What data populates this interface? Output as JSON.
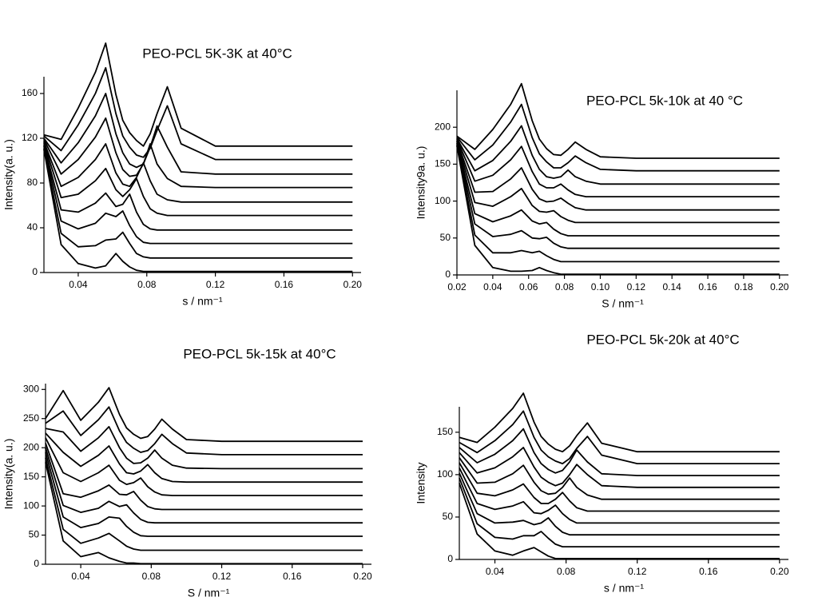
{
  "chart_data": [
    {
      "type": "line",
      "title": "PEO-PCL 5K-3K at 40°C",
      "xlabel": "s / nm⁻¹",
      "ylabel": "Intensity(a. u.)",
      "color": "#000000",
      "x": [
        0.02,
        0.03,
        0.04,
        0.05,
        0.056,
        0.062,
        0.066,
        0.07,
        0.074,
        0.078,
        0.082,
        0.086,
        0.092,
        0.1,
        0.12,
        0.16,
        0.2
      ],
      "series": [
        {
          "values": [
            110,
            25,
            8,
            4,
            6,
            17,
            10,
            5,
            2,
            1,
            1,
            1,
            1,
            1,
            1,
            1,
            1
          ]
        },
        {
          "values": [
            111,
            35,
            23,
            24,
            29,
            30,
            36,
            26,
            17,
            14,
            13,
            13,
            13,
            13,
            13,
            13,
            13
          ]
        },
        {
          "values": [
            113,
            46,
            39,
            44,
            53,
            50,
            55,
            42,
            32,
            27,
            26,
            26,
            26,
            26,
            26,
            26,
            26
          ]
        },
        {
          "values": [
            114,
            56,
            54,
            62,
            71,
            59,
            61,
            70,
            54,
            43,
            39,
            38,
            38,
            38,
            38,
            38,
            38
          ]
        },
        {
          "values": [
            116,
            67,
            70,
            82,
            93,
            74,
            68,
            74,
            84,
            68,
            57,
            53,
            51,
            51,
            51,
            51,
            51
          ]
        },
        {
          "values": [
            117,
            77,
            85,
            101,
            115,
            89,
            79,
            77,
            85,
            98,
            82,
            70,
            65,
            63,
            63,
            63,
            63
          ]
        },
        {
          "values": [
            119,
            88,
            101,
            121,
            138,
            107,
            92,
            86,
            87,
            97,
            115,
            97,
            84,
            77,
            76,
            76,
            76
          ]
        },
        {
          "values": [
            120,
            98,
            116,
            140,
            160,
            124,
            107,
            97,
            94,
            97,
            112,
            131,
            112,
            90,
            88,
            88,
            88
          ]
        },
        {
          "values": [
            122,
            109,
            132,
            160,
            183,
            142,
            122,
            112,
            105,
            103,
            111,
            127,
            149,
            115,
            101,
            101,
            101
          ]
        },
        {
          "values": [
            123,
            119,
            147,
            179,
            205,
            159,
            136,
            125,
            118,
            113,
            124,
            142,
            166,
            129,
            113,
            113,
            113
          ]
        }
      ],
      "xlim": [
        0.02,
        0.205
      ],
      "ylim": [
        0,
        175
      ],
      "xticks": [
        0.04,
        0.08,
        0.12,
        0.16,
        {
          "value": 0.2,
          "label": "0.20"
        }
      ],
      "yticks": [
        0,
        40,
        80,
        120,
        160
      ]
    },
    {
      "type": "line",
      "title": "PEO-PCL 5k-10k at 40 °C",
      "xlabel": "S / nm⁻¹",
      "ylabel": "Intensity9a. u.)",
      "color": "#000000",
      "x": [
        0.02,
        0.03,
        0.04,
        0.05,
        0.056,
        0.062,
        0.066,
        0.07,
        0.074,
        0.078,
        0.082,
        0.086,
        0.092,
        0.1,
        0.12,
        0.16,
        0.2
      ],
      "series": [
        {
          "values": [
            175,
            40,
            10,
            5,
            5,
            6,
            10,
            6,
            3,
            1,
            1,
            1,
            1,
            1,
            1,
            1,
            1
          ]
        },
        {
          "values": [
            176,
            54,
            30,
            30,
            33,
            30,
            32,
            26,
            21,
            18,
            18,
            18,
            18,
            18,
            18,
            18,
            18
          ]
        },
        {
          "values": [
            178,
            69,
            52,
            55,
            60,
            50,
            49,
            51,
            43,
            38,
            36,
            36,
            36,
            36,
            36,
            36,
            36
          ]
        },
        {
          "values": [
            179,
            83,
            72,
            80,
            88,
            73,
            69,
            71,
            62,
            56,
            53,
            53,
            53,
            53,
            53,
            53,
            53
          ]
        },
        {
          "values": [
            181,
            98,
            93,
            106,
            117,
            94,
            86,
            85,
            87,
            79,
            74,
            71,
            71,
            71,
            71,
            71,
            71
          ]
        },
        {
          "values": [
            182,
            112,
            113,
            130,
            145,
            116,
            103,
            99,
            100,
            104,
            97,
            91,
            88,
            88,
            88,
            88,
            88
          ]
        },
        {
          "values": [
            184,
            127,
            135,
            156,
            174,
            140,
            123,
            118,
            118,
            123,
            115,
            109,
            106,
            106,
            106,
            106,
            106
          ]
        },
        {
          "values": [
            185,
            141,
            155,
            181,
            202,
            162,
            143,
            133,
            131,
            133,
            142,
            133,
            127,
            123,
            123,
            123,
            123
          ]
        },
        {
          "values": [
            187,
            156,
            176,
            207,
            231,
            186,
            164,
            153,
            145,
            145,
            152,
            161,
            152,
            143,
            141,
            141,
            141
          ]
        },
        {
          "values": [
            188,
            170,
            197,
            231,
            259,
            209,
            184,
            171,
            163,
            162,
            170,
            180,
            170,
            160,
            158,
            158,
            158
          ]
        }
      ],
      "xlim": [
        0.02,
        0.205
      ],
      "ylim": [
        0,
        250
      ],
      "xticks": [
        0.02,
        0.04,
        0.06,
        0.08,
        {
          "value": 0.1,
          "label": "0.10"
        },
        0.12,
        0.14,
        0.16,
        0.18,
        {
          "value": 0.2,
          "label": "0.20"
        }
      ],
      "yticks": [
        0,
        50,
        100,
        150,
        200
      ]
    },
    {
      "type": "line",
      "title": "PEO-PCL 5k-15k at 40°C",
      "xlabel": "S / nm⁻¹",
      "ylabel": "Intensity(a. u.)",
      "color": "#000000",
      "x": [
        0.02,
        0.03,
        0.04,
        0.05,
        0.056,
        0.062,
        0.066,
        0.07,
        0.074,
        0.078,
        0.082,
        0.086,
        0.092,
        0.1,
        0.12,
        0.16,
        0.2
      ],
      "series": [
        {
          "values": [
            175,
            40,
            13,
            20,
            11,
            5,
            2,
            2,
            1,
            1,
            1,
            1,
            1,
            1,
            1,
            1,
            1
          ]
        },
        {
          "values": [
            183,
            60,
            36,
            45,
            53,
            40,
            31,
            26,
            24,
            24,
            24,
            24,
            24,
            24,
            24,
            24,
            24
          ]
        },
        {
          "values": [
            192,
            81,
            63,
            70,
            81,
            79,
            65,
            55,
            49,
            48,
            48,
            48,
            48,
            48,
            48,
            48,
            48
          ]
        },
        {
          "values": [
            200,
            101,
            89,
            96,
            108,
            99,
            102,
            88,
            77,
            72,
            71,
            71,
            71,
            71,
            71,
            71,
            71
          ]
        },
        {
          "values": [
            208,
            121,
            115,
            126,
            136,
            120,
            119,
            125,
            110,
            99,
            95,
            94,
            94,
            94,
            94,
            94,
            94
          ]
        },
        {
          "values": [
            217,
            157,
            142,
            157,
            170,
            144,
            137,
            140,
            148,
            133,
            124,
            119,
            118,
            118,
            118,
            118,
            118
          ]
        },
        {
          "values": [
            225,
            192,
            168,
            187,
            203,
            172,
            157,
            155,
            160,
            171,
            157,
            147,
            142,
            141,
            141,
            141,
            141
          ]
        },
        {
          "values": [
            233,
            227,
            194,
            217,
            236,
            200,
            182,
            173,
            174,
            182,
            196,
            182,
            170,
            165,
            164,
            164,
            164
          ]
        },
        {
          "values": [
            242,
            263,
            221,
            248,
            270,
            229,
            209,
            199,
            192,
            195,
            207,
            223,
            207,
            191,
            188,
            188,
            188
          ]
        },
        {
          "values": [
            250,
            298,
            247,
            278,
            303,
            257,
            234,
            223,
            216,
            219,
            232,
            249,
            232,
            214,
            211,
            211,
            211
          ]
        }
      ],
      "xlim": [
        0.02,
        0.205
      ],
      "ylim": [
        0,
        310
      ],
      "xticks": [
        0.04,
        0.08,
        0.12,
        0.16,
        {
          "value": 0.2,
          "label": "0.20"
        }
      ],
      "yticks": [
        0,
        50,
        100,
        150,
        200,
        250,
        300
      ]
    },
    {
      "type": "line",
      "title": "PEO-PCL 5k-20k at 40°C",
      "xlabel": "s / nm⁻¹",
      "ylabel": "Intensity",
      "color": "#000000",
      "x": [
        0.02,
        0.03,
        0.04,
        0.05,
        0.056,
        0.062,
        0.066,
        0.07,
        0.074,
        0.078,
        0.082,
        0.086,
        0.092,
        0.1,
        0.12,
        0.16,
        0.2
      ],
      "series": [
        {
          "values": [
            90,
            30,
            10,
            5,
            10,
            14,
            9,
            4,
            1,
            1,
            1,
            1,
            1,
            1,
            1,
            1,
            1
          ]
        },
        {
          "values": [
            96,
            42,
            26,
            24,
            28,
            28,
            33,
            25,
            18,
            15,
            15,
            15,
            15,
            15,
            15,
            15,
            15
          ]
        },
        {
          "values": [
            102,
            54,
            43,
            44,
            46,
            41,
            43,
            49,
            39,
            32,
            29,
            29,
            29,
            29,
            29,
            29,
            29
          ]
        },
        {
          "values": [
            108,
            66,
            59,
            63,
            68,
            55,
            54,
            58,
            64,
            54,
            47,
            43,
            43,
            43,
            43,
            43,
            43
          ]
        },
        {
          "values": [
            114,
            78,
            75,
            82,
            89,
            73,
            66,
            66,
            71,
            79,
            69,
            61,
            57,
            57,
            57,
            57,
            57
          ]
        },
        {
          "values": [
            120,
            90,
            91,
            101,
            111,
            91,
            81,
            77,
            78,
            85,
            96,
            85,
            76,
            71,
            71,
            71,
            71
          ]
        },
        {
          "values": [
            126,
            102,
            108,
            121,
            132,
            109,
            97,
            91,
            87,
            90,
            100,
            112,
            100,
            87,
            85,
            85,
            85
          ]
        },
        {
          "values": [
            132,
            114,
            124,
            140,
            154,
            126,
            113,
            106,
            102,
            105,
            115,
            129,
            115,
            101,
            99,
            99,
            99
          ]
        },
        {
          "values": [
            138,
            126,
            140,
            159,
            175,
            144,
            129,
            121,
            116,
            113,
            119,
            131,
            145,
            123,
            113,
            113,
            113
          ]
        },
        {
          "values": [
            144,
            138,
            156,
            178,
            196,
            162,
            145,
            136,
            130,
            127,
            134,
            146,
            161,
            137,
            127,
            127,
            127
          ]
        }
      ],
      "xlim": [
        0.02,
        0.205
      ],
      "ylim": [
        0,
        180
      ],
      "xticks": [
        0.04,
        0.08,
        0.12,
        0.16,
        {
          "value": 0.2,
          "label": "0.20"
        }
      ],
      "yticks": [
        0,
        50,
        100,
        150
      ]
    }
  ]
}
